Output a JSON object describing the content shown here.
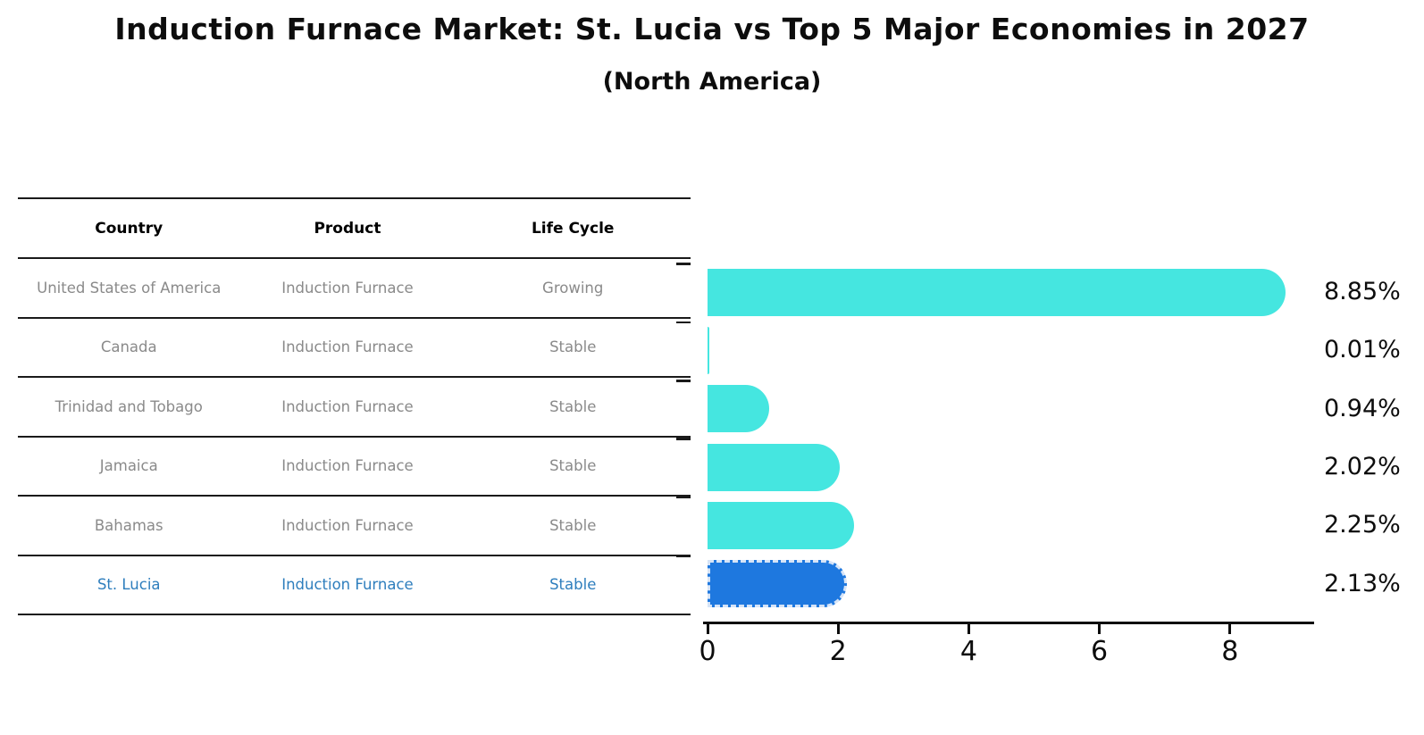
{
  "title": "Induction Furnace Market: St. Lucia vs Top 5 Major Economies in 2027",
  "subtitle": "(North America)",
  "table": {
    "headers": [
      "Country",
      "Product",
      "Life Cycle"
    ],
    "rows": [
      {
        "country": "United States of America",
        "product": "Induction Furnace",
        "life_cycle": "Growing",
        "highlighted": false
      },
      {
        "country": "Canada",
        "product": "Induction Furnace",
        "life_cycle": "Stable",
        "highlighted": false
      },
      {
        "country": "Trinidad and Tobago",
        "product": "Induction Furnace",
        "life_cycle": "Stable",
        "highlighted": false
      },
      {
        "country": "Jamaica",
        "product": "Induction Furnace",
        "life_cycle": "Stable",
        "highlighted": false
      },
      {
        "country": "Bahamas",
        "product": "Induction Furnace",
        "life_cycle": "Stable",
        "highlighted": false
      },
      {
        "country": "St. Lucia",
        "product": "Induction Furnace",
        "life_cycle": "Stable",
        "highlighted": true
      }
    ]
  },
  "chart_data": {
    "type": "bar",
    "orientation": "horizontal",
    "title": "Induction Furnace Market: St. Lucia vs Top 5 Major Economies in 2027 (North America)",
    "categories": [
      "United States of America",
      "Canada",
      "Trinidad and Tobago",
      "Jamaica",
      "Bahamas",
      "St. Lucia"
    ],
    "values": [
      8.85,
      0.01,
      0.94,
      2.02,
      2.25,
      2.13
    ],
    "value_labels": [
      "8.85%",
      "0.01%",
      "0.94%",
      "2.02%",
      "2.25%",
      "2.13%"
    ],
    "x_ticks": [
      "0",
      "2",
      "4",
      "6",
      "8"
    ],
    "xlim": [
      0,
      9.3
    ],
    "xlabel": "",
    "ylabel": "",
    "grid": false,
    "legend": null,
    "highlight_index": 5,
    "bar_color": "#45e6e0",
    "highlight_bar_color": "#1e78df",
    "highlight_text_color": "#2e7ebd",
    "row_text_color": "#8a8a8a"
  }
}
